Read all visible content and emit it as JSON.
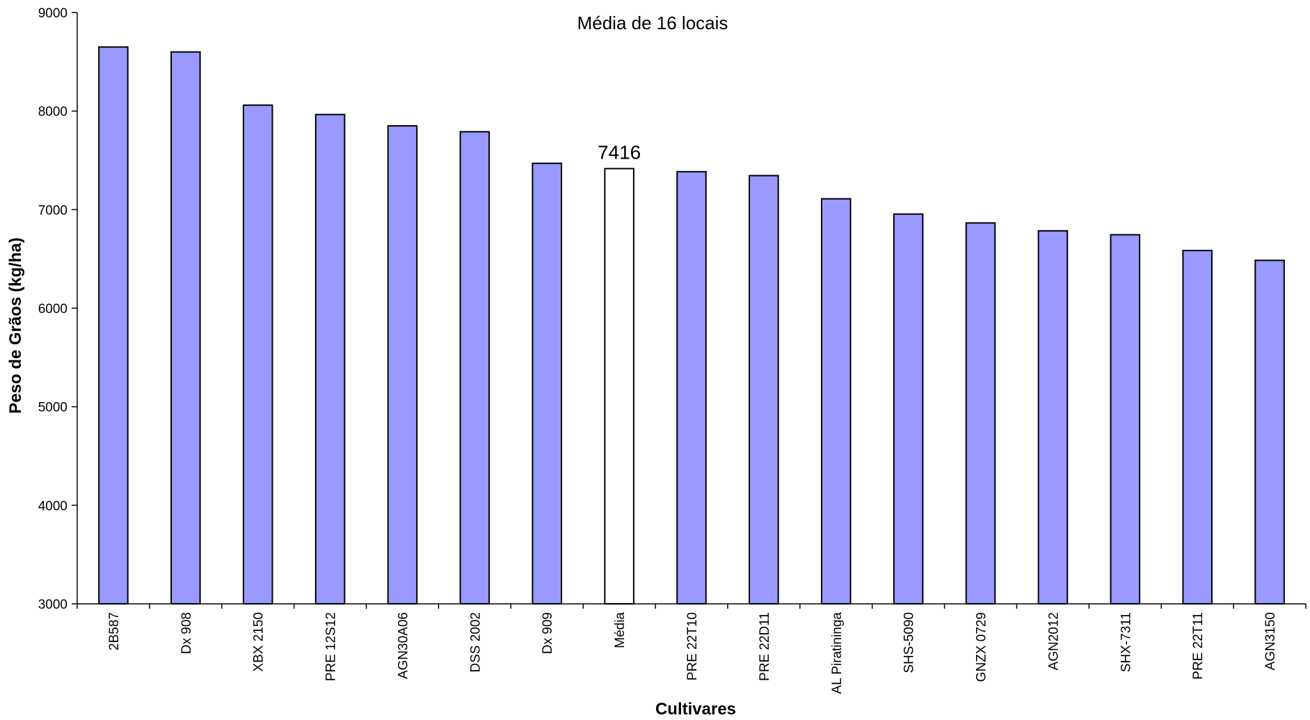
{
  "chart_data": {
    "type": "bar",
    "title": "Média de 16 locais",
    "xlabel": "Cultivares",
    "ylabel": "Peso de Grãos (kg/ha)",
    "ylim": [
      3000,
      9000
    ],
    "yticks": [
      3000,
      4000,
      5000,
      6000,
      7000,
      8000,
      9000
    ],
    "grid": false,
    "categories": [
      "2B587",
      "Dx 908",
      "XBX 2150",
      "PRE 12S12",
      "AGN30A06",
      "DSS 2002",
      "Dx 909",
      "Média",
      "PRE 22T10",
      "PRE 22D11",
      "AL Piratininga",
      "SHS-5090",
      "GNZX 0729",
      "AGN2012",
      "SHX-7311",
      "PRE 22T11",
      "AGN3150"
    ],
    "values": [
      8650,
      8600,
      8060,
      7965,
      7850,
      7790,
      7470,
      7416,
      7385,
      7345,
      7110,
      6955,
      6865,
      6785,
      6745,
      6585,
      6485
    ],
    "highlight_category": "Média",
    "data_labels": [
      {
        "category": "Média",
        "text": "7416"
      }
    ],
    "colors": {
      "bar": "#9999ff",
      "highlight": "#ffffff",
      "edge": "#000000"
    }
  }
}
